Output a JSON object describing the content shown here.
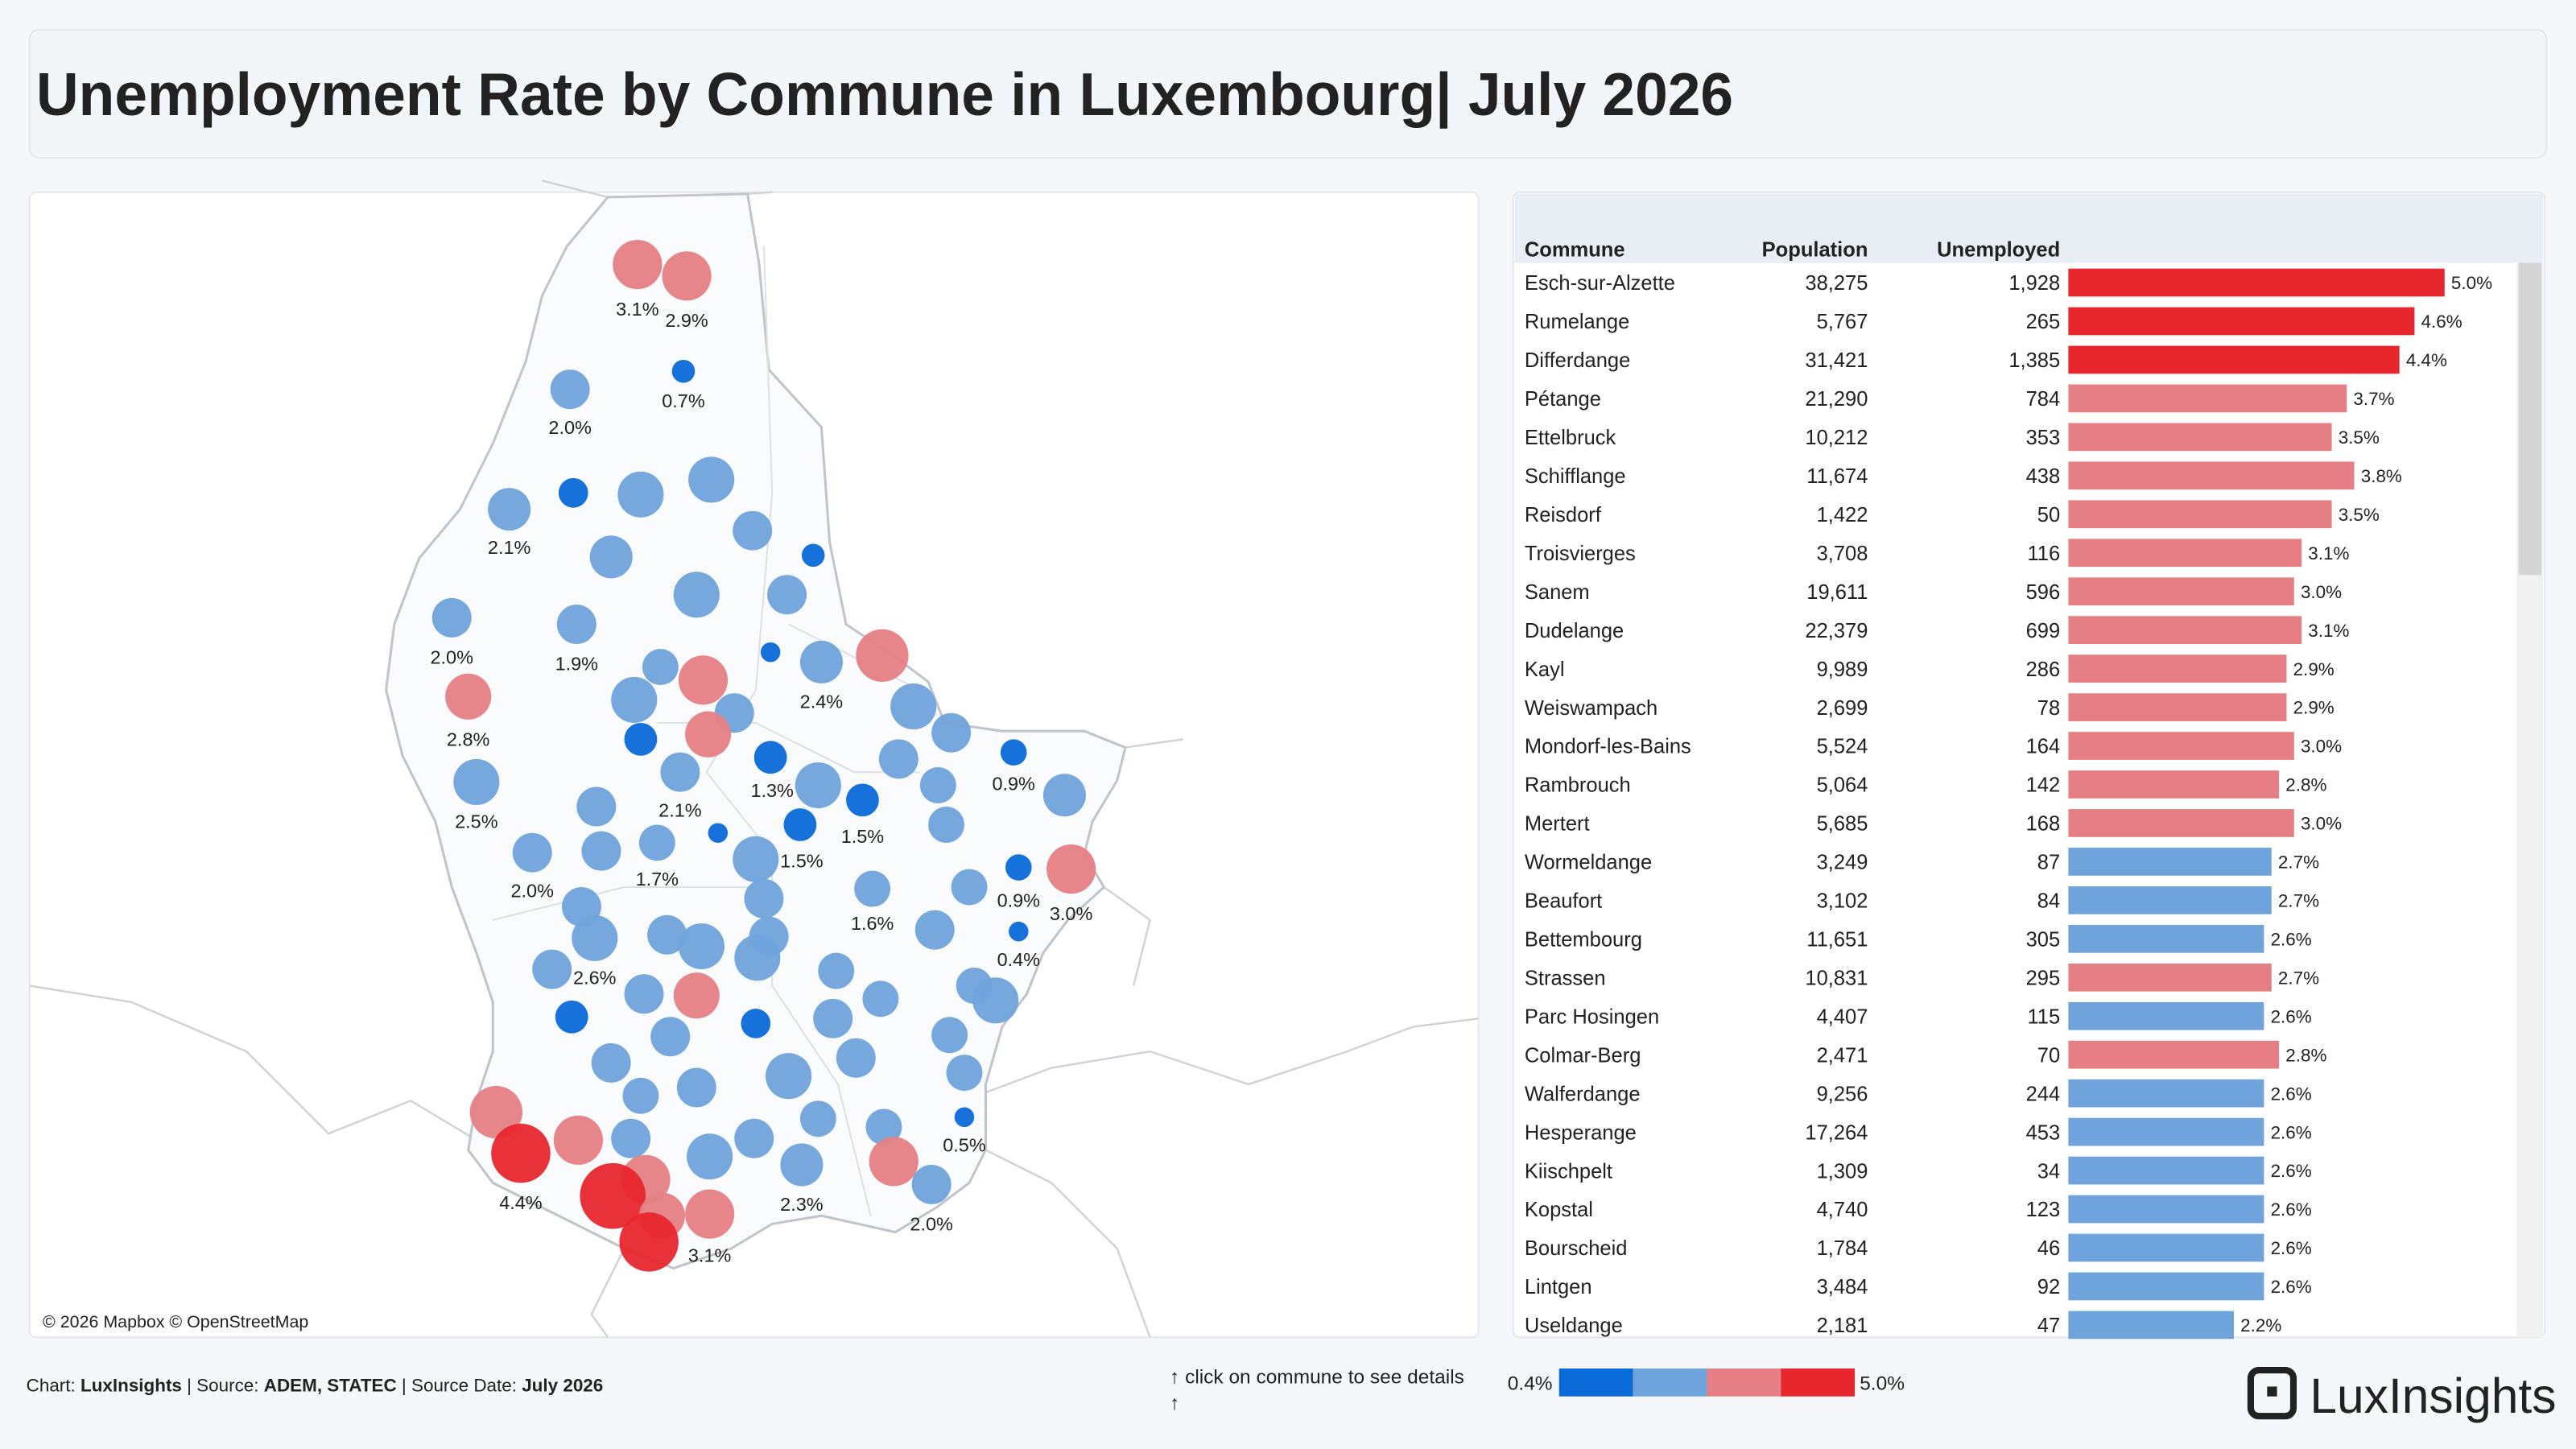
{
  "header": {
    "title": "Unemployment Rate by Commune in Luxembourg| July 2026"
  },
  "map": {
    "attribution": "© 2026 Mapbox © OpenStreetMap",
    "colors": [
      "#0a6ad8",
      "#6fa3dc",
      "#e57f85",
      "#e8262e"
    ],
    "bubbles": [
      {
        "value": 3.1,
        "label": "3.1%",
        "c": 2
      },
      {
        "value": 2.9,
        "label": "2.9%",
        "c": 2
      },
      {
        "value": 0.7,
        "label": "0.7%",
        "c": 0
      },
      {
        "value": 2.0,
        "label": "2.0%",
        "c": 1
      },
      {
        "value": 2.1,
        "label": "2.1%",
        "c": 1
      },
      {
        "value": 1.2,
        "c": 0
      },
      {
        "value": 2.2,
        "c": 1
      },
      {
        "value": 2.2,
        "c": 1
      },
      {
        "value": 2.2,
        "c": 1
      },
      {
        "value": 2.2,
        "c": 1
      },
      {
        "value": 1.2,
        "c": 0
      },
      {
        "value": 2.2,
        "c": 1
      },
      {
        "value": 2.2,
        "c": 1
      },
      {
        "value": 2.0,
        "label": "2.0%",
        "c": 1
      },
      {
        "value": 1.9,
        "label": "1.9%",
        "c": 1
      },
      {
        "value": 1.2,
        "c": 0
      },
      {
        "value": 2.4,
        "label": "2.4%",
        "c": 1
      },
      {
        "value": 3.0,
        "c": 2
      },
      {
        "value": 2.2,
        "c": 1
      },
      {
        "value": 3.0,
        "c": 2
      },
      {
        "value": 2.2,
        "c": 1
      },
      {
        "value": 2.8,
        "label": "2.8%",
        "c": 2
      },
      {
        "value": 2.2,
        "c": 1
      },
      {
        "value": 2.2,
        "c": 1
      },
      {
        "value": 3.0,
        "c": 2
      },
      {
        "value": 1.2,
        "c": 0
      },
      {
        "value": 2.2,
        "c": 1
      },
      {
        "value": 1.3,
        "label": "1.3%",
        "c": 0
      },
      {
        "value": 0.9,
        "label": "0.9%",
        "c": 0
      },
      {
        "value": 2.1,
        "label": "2.1%",
        "c": 1
      },
      {
        "value": 2.2,
        "c": 1
      },
      {
        "value": 2.5,
        "label": "2.5%",
        "c": 1
      },
      {
        "value": 2.2,
        "c": 1
      },
      {
        "value": 2.2,
        "c": 1
      },
      {
        "value": 2.2,
        "c": 1
      },
      {
        "value": 1.5,
        "label": "1.5%",
        "c": 0
      },
      {
        "value": 2.2,
        "c": 1
      },
      {
        "value": 1.5,
        "label": "1.5%",
        "c": 0
      },
      {
        "value": 2.2,
        "c": 1
      },
      {
        "value": 1.2,
        "c": 0
      },
      {
        "value": 1.7,
        "label": "1.7%",
        "c": 1
      },
      {
        "value": 2.0,
        "label": "2.0%",
        "c": 1
      },
      {
        "value": 2.2,
        "c": 1
      },
      {
        "value": 2.2,
        "c": 1
      },
      {
        "value": 0.9,
        "label": "0.9%",
        "c": 0
      },
      {
        "value": 3.0,
        "label": "3.0%",
        "c": 2
      },
      {
        "value": 1.6,
        "label": "1.6%",
        "c": 1
      },
      {
        "value": 2.2,
        "c": 1
      },
      {
        "value": 2.2,
        "c": 1
      },
      {
        "value": 2.2,
        "c": 1
      },
      {
        "value": 2.6,
        "label": "2.6%",
        "c": 1
      },
      {
        "value": 2.2,
        "c": 1
      },
      {
        "value": 2.2,
        "c": 1
      },
      {
        "value": 2.2,
        "c": 1
      },
      {
        "value": 2.2,
        "c": 1
      },
      {
        "value": 0.4,
        "label": "0.4%",
        "c": 0
      },
      {
        "value": 2.2,
        "c": 1
      },
      {
        "value": 2.2,
        "c": 1
      },
      {
        "value": 2.2,
        "c": 1
      },
      {
        "value": 2.2,
        "c": 1
      },
      {
        "value": 3.0,
        "c": 2
      },
      {
        "value": 2.2,
        "c": 1
      },
      {
        "value": 2.2,
        "c": 1
      },
      {
        "value": 2.2,
        "c": 1
      },
      {
        "value": 1.2,
        "c": 0
      },
      {
        "value": 2.2,
        "c": 1
      },
      {
        "value": 1.2,
        "c": 0
      },
      {
        "value": 2.2,
        "c": 1
      },
      {
        "value": 2.2,
        "c": 1
      },
      {
        "value": 2.2,
        "c": 1
      },
      {
        "value": 2.2,
        "c": 1
      },
      {
        "value": 2.2,
        "c": 1
      },
      {
        "value": 2.2,
        "c": 1
      },
      {
        "value": 2.2,
        "c": 1
      },
      {
        "value": 2.2,
        "c": 1
      },
      {
        "value": 3.0,
        "c": 2
      },
      {
        "value": 0.5,
        "label": "0.5%",
        "c": 0
      },
      {
        "value": 2.2,
        "c": 1
      },
      {
        "value": 2.2,
        "c": 1
      },
      {
        "value": 3.0,
        "c": 2
      },
      {
        "value": 2.2,
        "c": 1
      },
      {
        "value": 2.2,
        "c": 1
      },
      {
        "value": 4.4,
        "label": "4.4%",
        "c": 3
      },
      {
        "value": 2.2,
        "c": 1
      },
      {
        "value": 2.3,
        "label": "2.3%",
        "c": 1
      },
      {
        "value": 3.0,
        "c": 2
      },
      {
        "value": 3.0,
        "c": 2
      },
      {
        "value": 4.6,
        "c": 3
      },
      {
        "value": 2.0,
        "label": "2.0%",
        "c": 1
      },
      {
        "value": 3.0,
        "c": 2
      },
      {
        "value": 3.1,
        "label": "3.1%",
        "c": 2
      },
      {
        "value": 4.6,
        "c": 3
      }
    ]
  },
  "table": {
    "columns": [
      "Commune",
      "Population",
      "Unemployed"
    ],
    "rows": [
      {
        "commune": "Esch-sur-Alzette",
        "population": "38,275",
        "unemployed": "1,928",
        "rate": 5.0,
        "rate_label": "5.0%",
        "color": "#e8262e"
      },
      {
        "commune": "Rumelange",
        "population": "5,767",
        "unemployed": "265",
        "rate": 4.6,
        "rate_label": "4.6%",
        "color": "#e8262e"
      },
      {
        "commune": "Differdange",
        "population": "31,421",
        "unemployed": "1,385",
        "rate": 4.4,
        "rate_label": "4.4%",
        "color": "#e8262e"
      },
      {
        "commune": "Pétange",
        "population": "21,290",
        "unemployed": "784",
        "rate": 3.7,
        "rate_label": "3.7%",
        "color": "#e57f85"
      },
      {
        "commune": "Ettelbruck",
        "population": "10,212",
        "unemployed": "353",
        "rate": 3.5,
        "rate_label": "3.5%",
        "color": "#e57f85"
      },
      {
        "commune": "Schifflange",
        "population": "11,674",
        "unemployed": "438",
        "rate": 3.8,
        "rate_label": "3.8%",
        "color": "#e57f85"
      },
      {
        "commune": "Reisdorf",
        "population": "1,422",
        "unemployed": "50",
        "rate": 3.5,
        "rate_label": "3.5%",
        "color": "#e57f85"
      },
      {
        "commune": "Troisvierges",
        "population": "3,708",
        "unemployed": "116",
        "rate": 3.1,
        "rate_label": "3.1%",
        "color": "#e57f85"
      },
      {
        "commune": "Sanem",
        "population": "19,611",
        "unemployed": "596",
        "rate": 3.0,
        "rate_label": "3.0%",
        "color": "#e57f85"
      },
      {
        "commune": "Dudelange",
        "population": "22,379",
        "unemployed": "699",
        "rate": 3.1,
        "rate_label": "3.1%",
        "color": "#e57f85"
      },
      {
        "commune": "Kayl",
        "population": "9,989",
        "unemployed": "286",
        "rate": 2.9,
        "rate_label": "2.9%",
        "color": "#e57f85"
      },
      {
        "commune": "Weiswampach",
        "population": "2,699",
        "unemployed": "78",
        "rate": 2.9,
        "rate_label": "2.9%",
        "color": "#e57f85"
      },
      {
        "commune": "Mondorf-les-Bains",
        "population": "5,524",
        "unemployed": "164",
        "rate": 3.0,
        "rate_label": "3.0%",
        "color": "#e57f85"
      },
      {
        "commune": "Rambrouch",
        "population": "5,064",
        "unemployed": "142",
        "rate": 2.8,
        "rate_label": "2.8%",
        "color": "#e57f85"
      },
      {
        "commune": "Mertert",
        "population": "5,685",
        "unemployed": "168",
        "rate": 3.0,
        "rate_label": "3.0%",
        "color": "#e57f85"
      },
      {
        "commune": "Wormeldange",
        "population": "3,249",
        "unemployed": "87",
        "rate": 2.7,
        "rate_label": "2.7%",
        "color": "#6fa3dc"
      },
      {
        "commune": "Beaufort",
        "population": "3,102",
        "unemployed": "84",
        "rate": 2.7,
        "rate_label": "2.7%",
        "color": "#6fa3dc"
      },
      {
        "commune": "Bettembourg",
        "population": "11,651",
        "unemployed": "305",
        "rate": 2.6,
        "rate_label": "2.6%",
        "color": "#6fa3dc"
      },
      {
        "commune": "Strassen",
        "population": "10,831",
        "unemployed": "295",
        "rate": 2.7,
        "rate_label": "2.7%",
        "color": "#e57f85"
      },
      {
        "commune": "Parc Hosingen",
        "population": "4,407",
        "unemployed": "115",
        "rate": 2.6,
        "rate_label": "2.6%",
        "color": "#6fa3dc"
      },
      {
        "commune": "Colmar-Berg",
        "population": "2,471",
        "unemployed": "70",
        "rate": 2.8,
        "rate_label": "2.8%",
        "color": "#e57f85"
      },
      {
        "commune": "Walferdange",
        "population": "9,256",
        "unemployed": "244",
        "rate": 2.6,
        "rate_label": "2.6%",
        "color": "#6fa3dc"
      },
      {
        "commune": "Hesperange",
        "population": "17,264",
        "unemployed": "453",
        "rate": 2.6,
        "rate_label": "2.6%",
        "color": "#6fa3dc"
      },
      {
        "commune": "Kiischpelt",
        "population": "1,309",
        "unemployed": "34",
        "rate": 2.6,
        "rate_label": "2.6%",
        "color": "#6fa3dc"
      },
      {
        "commune": "Kopstal",
        "population": "4,740",
        "unemployed": "123",
        "rate": 2.6,
        "rate_label": "2.6%",
        "color": "#6fa3dc"
      },
      {
        "commune": "Bourscheid",
        "population": "1,784",
        "unemployed": "46",
        "rate": 2.6,
        "rate_label": "2.6%",
        "color": "#6fa3dc"
      },
      {
        "commune": "Lintgen",
        "population": "3,484",
        "unemployed": "92",
        "rate": 2.6,
        "rate_label": "2.6%",
        "color": "#6fa3dc"
      },
      {
        "commune": "Useldange",
        "population": "2,181",
        "unemployed": "47",
        "rate": 2.2,
        "rate_label": "2.2%",
        "color": "#6fa3dc"
      }
    ]
  },
  "footer": {
    "chart_prefix": "Chart: ",
    "chart_name": "LuxInsights",
    "source_prefix": " | Source: ",
    "source": "ADEM, STATEC",
    "date_prefix": " | Source Date: ",
    "date": "July 2026",
    "hint": "↑ click on commune to see details",
    "hint_arrow": "↑",
    "legend_min": "0.4%",
    "legend_max": "5.0%",
    "logo": "LuxInsights"
  }
}
